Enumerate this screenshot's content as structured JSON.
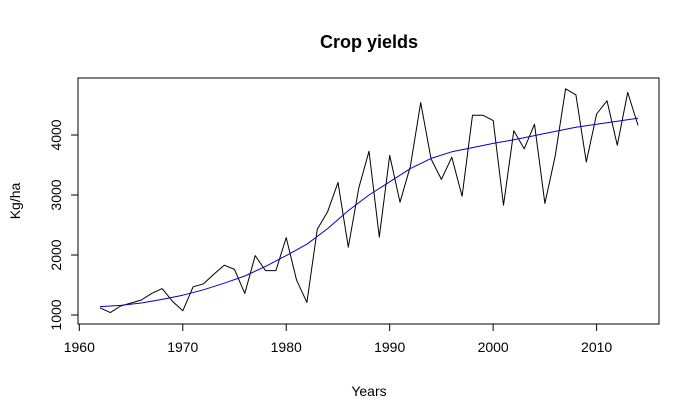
{
  "chart_data": {
    "type": "line",
    "title": "Crop yields",
    "xlabel": "Years",
    "ylabel": "Kg/ha",
    "xlim": [
      1962,
      2014
    ],
    "ylim": [
      1000,
      4800
    ],
    "x_ticks": [
      1960,
      1970,
      1980,
      1990,
      2000,
      2010
    ],
    "y_ticks": [
      1000,
      2000,
      3000,
      4000
    ],
    "grid": false,
    "series": [
      {
        "color": "#000000",
        "x": [
          1962,
          1963,
          1964,
          1965,
          1966,
          1967,
          1968,
          1969,
          1970,
          1971,
          1972,
          1973,
          1974,
          1975,
          1976,
          1977,
          1978,
          1979,
          1980,
          1981,
          1982,
          1983,
          1984,
          1985,
          1986,
          1987,
          1988,
          1989,
          1990,
          1991,
          1992,
          1993,
          1994,
          1995,
          1996,
          1997,
          1998,
          1999,
          2000,
          2001,
          2002,
          2003,
          2004,
          2005,
          2006,
          2007,
          2008,
          2009,
          2010,
          2011,
          2012,
          2013,
          2014
        ],
        "values": [
          1120,
          1040,
          1150,
          1200,
          1250,
          1360,
          1440,
          1230,
          1070,
          1470,
          1520,
          1680,
          1830,
          1760,
          1360,
          1990,
          1740,
          1740,
          2290,
          1580,
          1210,
          2430,
          2720,
          3210,
          2130,
          3110,
          3730,
          2300,
          3660,
          2880,
          3480,
          4540,
          3600,
          3260,
          3630,
          2980,
          4330,
          4330,
          4240,
          2830,
          4070,
          3770,
          4180,
          2860,
          3650,
          4770,
          4670,
          3550,
          4350,
          4570,
          3830,
          4710,
          4160
        ]
      },
      {
        "color": "#0000cc",
        "x": [
          1962,
          1964,
          1966,
          1968,
          1970,
          1972,
          1974,
          1976,
          1978,
          1980,
          1982,
          1984,
          1986,
          1988,
          1990,
          1992,
          1994,
          1996,
          1998,
          2000,
          2002,
          2004,
          2006,
          2008,
          2010,
          2012,
          2014
        ],
        "values": [
          1140,
          1160,
          1200,
          1260,
          1330,
          1420,
          1530,
          1650,
          1810,
          1990,
          2180,
          2440,
          2740,
          3000,
          3220,
          3440,
          3610,
          3720,
          3790,
          3860,
          3920,
          3990,
          4060,
          4130,
          4180,
          4230,
          4280
        ]
      }
    ]
  }
}
